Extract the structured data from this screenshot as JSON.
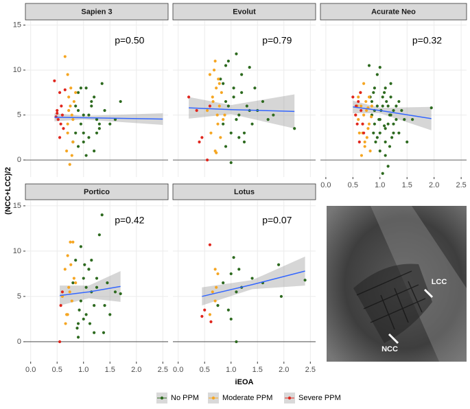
{
  "chart_data": [
    {
      "type": "scatter",
      "title": "Sapien 3",
      "annotation": "p=0.50",
      "ylabel": "(NCC+LCC)/2",
      "legend": "bottom",
      "grid": true,
      "xlim": [
        -0.1,
        2.6
      ],
      "xticks": [
        {
          "value": 0,
          "label": "0.0"
        },
        {
          "value": 0.5,
          "label": "0.5"
        },
        {
          "value": 1,
          "label": "1.0"
        },
        {
          "value": 1.5,
          "label": "1.5"
        },
        {
          "value": 2,
          "label": "2.0"
        },
        {
          "value": 2.5,
          "label": "2.5"
        }
      ],
      "ylim": [
        -1.9,
        15.5
      ],
      "yticks": [
        0,
        5,
        10,
        15
      ],
      "series": [
        {
          "name": "No PPM",
          "color": "#2d6a1f",
          "x": [
            0.8,
            0.85,
            0.9,
            0.95,
            1.0,
            1.05,
            1.1,
            1.15,
            1.2,
            1.25,
            1.3,
            1.35,
            1.4,
            1.5,
            1.6,
            1.7,
            0.9,
            1.0,
            1.1,
            1.2,
            0.85,
            0.95,
            1.05,
            1.15,
            1.3,
            1.0,
            0.9,
            1.25
          ],
          "values": [
            2,
            6,
            7.5,
            4,
            3,
            8,
            5,
            6.5,
            1,
            4.5,
            3.5,
            8.5,
            5.5,
            4,
            4.5,
            6.5,
            1.5,
            5,
            2.5,
            7,
            3,
            8,
            0.5,
            6,
            4,
            2,
            5.5,
            3
          ]
        },
        {
          "name": "Moderate PPM",
          "color": "#f5a623",
          "x": [
            0.65,
            0.7,
            0.72,
            0.75,
            0.78,
            0.8,
            0.7,
            0.68,
            0.74,
            0.76,
            0.82,
            0.8,
            0.72,
            0.7,
            0.78,
            0.85
          ],
          "values": [
            11.5,
            9.5,
            7,
            6,
            5,
            4.5,
            3,
            1,
            -0.5,
            8,
            6.5,
            2,
            5.5,
            4,
            0.5,
            7.5
          ]
        },
        {
          "name": "Severe PPM",
          "color": "#e0261d",
          "x": [
            0.45,
            0.5,
            0.52,
            0.55,
            0.58,
            0.6,
            0.48,
            0.62,
            0.55,
            0.5,
            0.65,
            0.57
          ],
          "values": [
            8.8,
            5.2,
            4.5,
            7.5,
            6,
            5,
            4.8,
            3.5,
            2.5,
            5.5,
            7.8,
            4
          ]
        }
      ],
      "fit": {
        "x": [
          0.45,
          1.0,
          2.5
        ],
        "values": [
          4.75,
          4.7,
          4.55
        ],
        "lower": [
          4.3,
          4.5,
          3.9
        ],
        "upper": [
          5.2,
          4.9,
          5.2
        ]
      }
    },
    {
      "type": "scatter",
      "title": "Evolut",
      "annotation": "p=0.79",
      "grid": true,
      "xlim": [
        -0.1,
        2.6
      ],
      "xticks": [
        {
          "value": 0,
          "label": "0.0"
        },
        {
          "value": 0.5,
          "label": "0.5"
        },
        {
          "value": 1,
          "label": "1.0"
        },
        {
          "value": 1.5,
          "label": "1.5"
        },
        {
          "value": 2,
          "label": "2.0"
        },
        {
          "value": 2.5,
          "label": "2.5"
        }
      ],
      "ylim": [
        -1.9,
        15.5
      ],
      "yticks": [
        0,
        5,
        10,
        15
      ],
      "series": [
        {
          "name": "No PPM",
          "color": "#2d6a1f",
          "x": [
            0.8,
            0.85,
            0.9,
            0.95,
            1.0,
            1.05,
            1.1,
            1.15,
            1.2,
            1.25,
            1.3,
            1.35,
            1.4,
            1.45,
            1.5,
            1.6,
            1.7,
            1.8,
            2.2,
            0.9,
            1.0,
            1.1,
            1.2,
            0.95,
            1.05,
            1.15,
            0.85,
            1.25,
            1.35,
            0.9
          ],
          "values": [
            9,
            4,
            6.5,
            11,
            3,
            8,
            11.8,
            5,
            7.5,
            2,
            6,
            10.3,
            4,
            8,
            5.5,
            6.5,
            4.5,
            5,
            3.5,
            1.5,
            -0.3,
            4.5,
            9.5,
            6,
            7,
            2.5,
            8.5,
            3,
            5.5,
            10.5
          ]
        },
        {
          "name": "Moderate PPM",
          "color": "#f5a623",
          "x": [
            0.55,
            0.6,
            0.65,
            0.7,
            0.72,
            0.75,
            0.78,
            0.8,
            0.62,
            0.68,
            0.74,
            0.76,
            0.82,
            0.85,
            0.7,
            0.66,
            0.78,
            0.72,
            0.88
          ],
          "values": [
            5.5,
            9.5,
            7,
            11,
            8,
            4,
            6,
            2.5,
            3,
            10,
            5,
            9,
            7.5,
            4.5,
            1,
            6.5,
            8.5,
            0.8,
            5
          ]
        },
        {
          "name": "Severe PPM",
          "color": "#e0261d",
          "x": [
            0.2,
            0.35,
            0.4,
            0.45,
            0.55,
            0.6
          ],
          "values": [
            7,
            5.5,
            2,
            2.5,
            0,
            6
          ]
        }
      ],
      "fit": {
        "x": [
          0.2,
          1.0,
          2.2
        ],
        "values": [
          5.8,
          5.6,
          5.4
        ],
        "lower": [
          4.6,
          5.1,
          3.5
        ],
        "upper": [
          7.0,
          6.1,
          7.3
        ]
      }
    },
    {
      "type": "scatter",
      "title": "Acurate Neo",
      "annotation": "p=0.32",
      "grid": true,
      "xlim": [
        -0.1,
        2.6
      ],
      "xticks": [
        {
          "value": 0,
          "label": "0.0"
        },
        {
          "value": 0.5,
          "label": "0.5"
        },
        {
          "value": 1,
          "label": "1.0"
        },
        {
          "value": 1.5,
          "label": "1.5"
        },
        {
          "value": 2,
          "label": "2.0"
        },
        {
          "value": 2.5,
          "label": "2.5"
        }
      ],
      "ylim": [
        -1.9,
        15.5
      ],
      "yticks": [
        0,
        5,
        10,
        15
      ],
      "series": [
        {
          "name": "No PPM",
          "color": "#2d6a1f",
          "x": [
            0.8,
            0.82,
            0.85,
            0.88,
            0.9,
            0.92,
            0.95,
            0.98,
            1.0,
            1.02,
            1.05,
            1.08,
            1.1,
            1.12,
            1.15,
            1.18,
            1.2,
            1.22,
            1.25,
            1.3,
            1.35,
            1.4,
            1.45,
            1.5,
            1.6,
            1.95,
            0.85,
            0.9,
            0.95,
            1.0,
            1.05,
            1.1,
            1.15,
            1.2,
            1.25,
            0.9,
            1.0,
            1.1,
            1.2,
            1.3,
            0.95,
            1.05,
            1.15,
            1.25,
            1.35,
            1.0,
            1.1,
            0.88,
            1.08,
            1.18
          ],
          "values": [
            10.5,
            7,
            5,
            3,
            8,
            2,
            6,
            4.5,
            10.3,
            5.5,
            -1.5,
            7.5,
            3.5,
            6.5,
            -0.7,
            5,
            8.5,
            2.5,
            4,
            6,
            3,
            5.5,
            4.5,
            2,
            4.5,
            5.8,
            6.5,
            4,
            9.5,
            1,
            6,
            0.5,
            4,
            7,
            3,
            5.5,
            3,
            8,
            5,
            4.5,
            2.5,
            7,
            6,
            5.5,
            6.5,
            4.5,
            2,
            7.5,
            3.8,
            1.5
          ]
        },
        {
          "name": "Moderate PPM",
          "color": "#f5a623",
          "x": [
            0.55,
            0.6,
            0.62,
            0.65,
            0.68,
            0.7,
            0.72,
            0.75,
            0.78,
            0.8,
            0.82,
            0.85,
            0.6,
            0.66,
            0.74,
            0.76,
            0.7,
            0.64,
            0.8,
            0.72,
            0.58,
            0.68,
            0.78,
            0.84
          ],
          "values": [
            5,
            7,
            3,
            6,
            4,
            8.5,
            2,
            5.5,
            3.5,
            7,
            1,
            6,
            4.5,
            0.5,
            6.5,
            2.5,
            5,
            7.5,
            4,
            1.5,
            6,
            3,
            5.8,
            4.8
          ]
        },
        {
          "name": "Severe PPM",
          "color": "#e0261d",
          "x": [
            0.5,
            0.55,
            0.58,
            0.6,
            0.62,
            0.65,
            0.68,
            0.7,
            0.56,
            0.64
          ],
          "values": [
            7,
            5,
            4,
            6.5,
            2,
            5.5,
            4,
            3,
            6,
            7.5
          ]
        }
      ],
      "fit": {
        "x": [
          0.5,
          1.0,
          1.95
        ],
        "values": [
          5.9,
          5.5,
          4.6
        ],
        "lower": [
          5.2,
          5.2,
          3.3
        ],
        "upper": [
          6.6,
          5.8,
          5.9
        ]
      }
    },
    {
      "type": "scatter",
      "title": "Portico",
      "annotation": "p=0.42",
      "grid": true,
      "xlim": [
        -0.1,
        2.6
      ],
      "xticks": [
        {
          "value": 0,
          "label": "0.0"
        },
        {
          "value": 0.5,
          "label": "0.5"
        },
        {
          "value": 1,
          "label": "1.0"
        },
        {
          "value": 1.5,
          "label": "1.5"
        },
        {
          "value": 2,
          "label": "2.0"
        },
        {
          "value": 2.5,
          "label": "2.5"
        }
      ],
      "ylim": [
        -2.2,
        15.6
      ],
      "yticks": [
        0,
        5,
        10,
        15
      ],
      "series": [
        {
          "name": "No PPM",
          "color": "#2d6a1f",
          "x": [
            0.8,
            0.85,
            0.9,
            0.95,
            1.0,
            1.05,
            1.1,
            1.15,
            1.2,
            1.25,
            1.3,
            1.35,
            1.4,
            1.45,
            1.5,
            1.6,
            1.7,
            0.9,
            1.0,
            1.1,
            1.2,
            0.95,
            1.05,
            1.15,
            0.88,
            1.25,
            1.38,
            0.92,
            1.02,
            1.12
          ],
          "values": [
            6.5,
            9,
            2,
            4.5,
            7,
            3,
            8,
            5.5,
            1,
            6,
            11.8,
            14,
            4,
            6.5,
            3,
            5.5,
            5.3,
            0.5,
            2.5,
            8,
            4,
            10.5,
            6,
            9,
            1.5,
            7,
            1,
            3.5,
            8.5,
            2
          ]
        },
        {
          "name": "Moderate PPM",
          "color": "#f5a623",
          "x": [
            0.6,
            0.65,
            0.68,
            0.7,
            0.72,
            0.75,
            0.78,
            0.8,
            0.82,
            0.66,
            0.74,
            0.76,
            0.7,
            0.85
          ],
          "values": [
            5,
            8,
            3,
            9.5,
            6,
            11,
            4.5,
            11,
            7,
            2,
            5.5,
            8.5,
            3,
            6.5
          ]
        },
        {
          "name": "Severe PPM",
          "color": "#e0261d",
          "x": [
            0.55,
            0.57,
            0.6
          ],
          "values": [
            0,
            4,
            5.5
          ]
        }
      ],
      "fit": {
        "x": [
          0.55,
          1.1,
          1.7
        ],
        "values": [
          5.1,
          5.5,
          6.1
        ],
        "lower": [
          4.0,
          4.8,
          4.4
        ],
        "upper": [
          6.2,
          6.2,
          7.8
        ]
      }
    },
    {
      "type": "scatter",
      "title": "Lotus",
      "annotation": "p=0.07",
      "xlabel": "iEOA",
      "grid": true,
      "xlim": [
        -0.1,
        2.6
      ],
      "xticks": [
        {
          "value": 0,
          "label": "0.0"
        },
        {
          "value": 0.5,
          "label": "0.5"
        },
        {
          "value": 1,
          "label": "1.0"
        },
        {
          "value": 1.5,
          "label": "1.5"
        },
        {
          "value": 2,
          "label": "2.0"
        },
        {
          "value": 2.5,
          "label": "2.5"
        }
      ],
      "ylim": [
        -2.2,
        15.6
      ],
      "yticks": [
        0,
        5,
        10,
        15
      ],
      "series": [
        {
          "name": "No PPM",
          "color": "#2d6a1f",
          "x": [
            0.75,
            0.85,
            0.95,
            1.0,
            1.05,
            1.1,
            1.15,
            1.2,
            1.4,
            1.6,
            1.9,
            1.95,
            2.4,
            1.1,
            1.0
          ],
          "values": [
            4,
            6.5,
            3.5,
            2.5,
            9.3,
            5.5,
            8,
            6,
            7,
            6.5,
            8.5,
            5,
            6.8,
            0,
            7.5
          ]
        },
        {
          "name": "Moderate PPM",
          "color": "#f5a623",
          "x": [
            0.6,
            0.65,
            0.7,
            0.72,
            0.75,
            0.7
          ],
          "values": [
            3,
            5.5,
            8,
            6,
            7.5,
            4.5
          ]
        },
        {
          "name": "Severe PPM",
          "color": "#e0261d",
          "x": [
            0.45,
            0.5,
            0.6,
            0.62
          ],
          "values": [
            2.8,
            3.5,
            10.7,
            2.2
          ]
        }
      ],
      "fit": {
        "x": [
          0.45,
          1.4,
          2.4
        ],
        "values": [
          5.0,
          6.3,
          7.8
        ],
        "lower": [
          4.0,
          5.8,
          6.2
        ],
        "upper": [
          6.0,
          6.8,
          9.4
        ]
      }
    }
  ],
  "image": {
    "labels": [
      "LCC",
      "NCC"
    ]
  }
}
